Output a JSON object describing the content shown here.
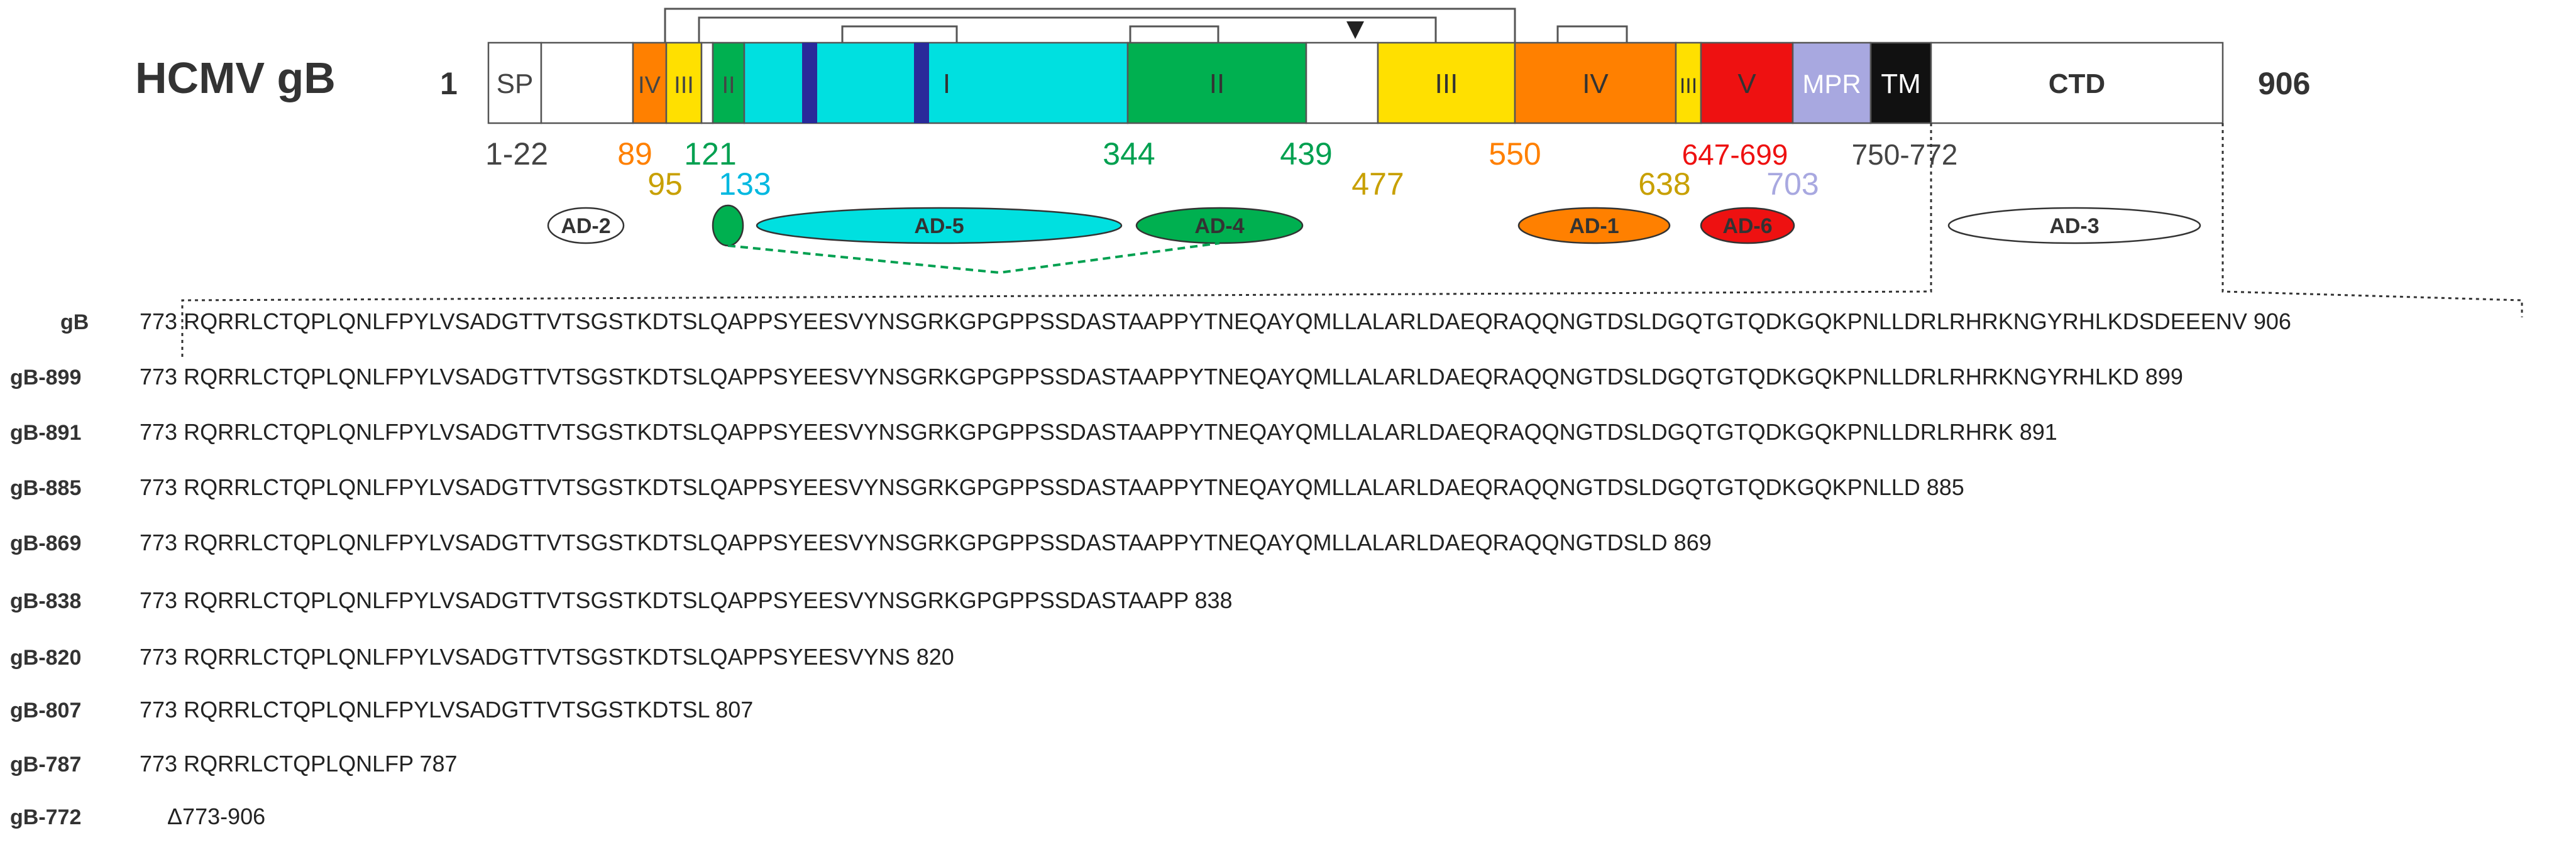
{
  "title": "HCMV gB",
  "start_residue": "1",
  "end_residue": "906",
  "colors": {
    "domain_I": "#00e0e0",
    "domain_II": "#00b050",
    "domain_III": "#ffe000",
    "domain_IV": "#ff8000",
    "domain_V": "#ee1111",
    "mpr": "#a8a8e0",
    "tm": "#111111",
    "insert": "#2a2a9a",
    "outline": "#555555"
  },
  "segments": [
    {
      "id": "sp",
      "label": "SP",
      "text_color": "#444444"
    },
    {
      "id": "iv-a",
      "label": "IV",
      "text_color": "#444444"
    },
    {
      "id": "iii-a",
      "label": "III",
      "text_color": "#444444"
    },
    {
      "id": "ii-a",
      "label": "II",
      "text_color": "#444444"
    },
    {
      "id": "i",
      "label": "I",
      "text_color": "#333333"
    },
    {
      "id": "ii-b",
      "label": "II",
      "text_color": "#333333"
    },
    {
      "id": "iii-b",
      "label": "III",
      "text_color": "#333333"
    },
    {
      "id": "iv-b",
      "label": "IV",
      "text_color": "#333333"
    },
    {
      "id": "iii-c",
      "label": "III",
      "text_color": "#333333"
    },
    {
      "id": "v",
      "label": "V",
      "text_color": "#333333"
    },
    {
      "id": "mpr",
      "label": "MPR",
      "text_color": "#ffffff"
    },
    {
      "id": "tm",
      "label": "TM",
      "text_color": "#ffffff"
    },
    {
      "id": "ctd",
      "label": "CTD",
      "text_color": "#333333"
    }
  ],
  "positions": [
    {
      "label": "1-22",
      "color": "#444444"
    },
    {
      "label": "89",
      "color": "#ff8000"
    },
    {
      "label": "95",
      "color": "#c8a000"
    },
    {
      "label": "121",
      "color": "#00a050"
    },
    {
      "label": "133",
      "color": "#00b8e0"
    },
    {
      "label": "344",
      "color": "#00a050"
    },
    {
      "label": "439",
      "color": "#00a050"
    },
    {
      "label": "477",
      "color": "#c8a000"
    },
    {
      "label": "550",
      "color": "#ff8000"
    },
    {
      "label": "638",
      "color": "#c8a000"
    },
    {
      "label": "647-699",
      "color": "#ee1111"
    },
    {
      "label": "703",
      "color": "#a8a8e0"
    },
    {
      "label": "750-772",
      "color": "#444444"
    }
  ],
  "antigenic_domains": [
    {
      "id": "ad-2",
      "label": "AD-2"
    },
    {
      "id": "ad-5",
      "label": "AD-5"
    },
    {
      "id": "ad-4",
      "label": "AD-4"
    },
    {
      "id": "ad-1",
      "label": "AD-1"
    },
    {
      "id": "ad-6",
      "label": "AD-6"
    },
    {
      "id": "ad-3",
      "label": "AD-3"
    }
  ],
  "constructs": [
    {
      "name": "gB",
      "start": "773",
      "sequence": "RQRRLCTQPLQNLFPYLVSADGTTVTSGSTKDTSLQAPPSYEESVYNSGRKGPGPPSSDASTAAPPYTNEQAYQMLLALARLDAEQRAQQNGTDSLDGQTGTQDKGQKPNLLDRLRHRKNGYRHLKDSDEEENV",
      "end": "906"
    },
    {
      "name": "gB-899",
      "start": "773",
      "sequence": "RQRRLCTQPLQNLFPYLVSADGTTVTSGSTKDTSLQAPPSYEESVYNSGRKGPGPPSSDASTAAPPYTNEQAYQMLLALARLDAEQRAQQNGTDSLDGQTGTQDKGQKPNLLDRLRHRKNGYRHLKD",
      "end": "899"
    },
    {
      "name": "gB-891",
      "start": "773",
      "sequence": "RQRRLCTQPLQNLFPYLVSADGTTVTSGSTKDTSLQAPPSYEESVYNSGRKGPGPPSSDASTAAPPYTNEQAYQMLLALARLDAEQRAQQNGTDSLDGQTGTQDKGQKPNLLDRLRHRK",
      "end": "891"
    },
    {
      "name": "gB-885",
      "start": "773",
      "sequence": "RQRRLCTQPLQNLFPYLVSADGTTVTSGSTKDTSLQAPPSYEESVYNSGRKGPGPPSSDASTAAPPYTNEQAYQMLLALARLDAEQRAQQNGTDSLDGQTGTQDKGQKPNLLD",
      "end": "885"
    },
    {
      "name": "gB-869",
      "start": "773",
      "sequence": "RQRRLCTQPLQNLFPYLVSADGTTVTSGSTKDTSLQAPPSYEESVYNSGRKGPGPPSSDASTAAPPYTNEQAYQMLLALARLDAEQRAQQNGTDSLD",
      "end": "869"
    },
    {
      "name": "gB-838",
      "start": "773",
      "sequence": "RQRRLCTQPLQNLFPYLVSADGTTVTSGSTKDTSLQAPPSYEESVYNSGRKGPGPPSSDASTAAPP",
      "end": "838"
    },
    {
      "name": "gB-820",
      "start": "773",
      "sequence": "RQRRLCTQPLQNLFPYLVSADGTTVTSGSTKDTSLQAPPSYEESVYNS",
      "end": "820"
    },
    {
      "name": "gB-807",
      "start": "773",
      "sequence": "RQRRLCTQPLQNLFPYLVSADGTTVTSGSTKDTSL",
      "end": "807"
    },
    {
      "name": "gB-787",
      "start": "773",
      "sequence": "RQRRLCTQPLQNLFP",
      "end": "787"
    },
    {
      "name": "gB-772",
      "start": "",
      "sequence": "Δ773-906",
      "end": ""
    }
  ]
}
